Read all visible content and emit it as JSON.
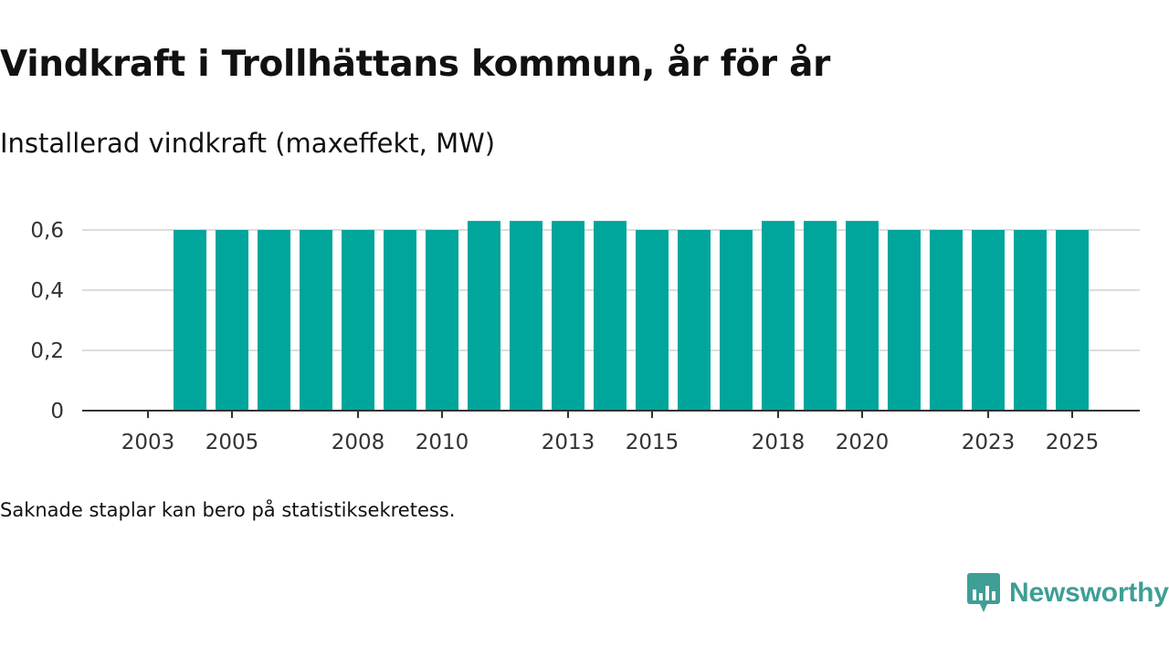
{
  "title": "Vindkraft i Trollhättans kommun, år för år",
  "subtitle": "Installerad vindkraft (maxeffekt, MW)",
  "footnote": "Saknade staplar kan bero på statistiksekretess.",
  "brand": {
    "name": "Newsworthy",
    "color": "#3f9e95",
    "icon": "newsworthy-logo-icon"
  },
  "colors": {
    "bar": "#00a59b",
    "grid": "#dddddd",
    "axis": "#333333",
    "tick_text": "#333333"
  },
  "chart_data": {
    "type": "bar",
    "title": "Vindkraft i Trollhättans kommun, år för år",
    "ylabel": "Installerad vindkraft (maxeffekt, MW)",
    "xlabel": "",
    "categories": [
      2003,
      2004,
      2005,
      2006,
      2007,
      2008,
      2009,
      2010,
      2011,
      2012,
      2013,
      2014,
      2015,
      2016,
      2017,
      2018,
      2019,
      2020,
      2021,
      2022,
      2023,
      2024,
      2025
    ],
    "values": [
      null,
      0.6,
      0.6,
      0.6,
      0.6,
      0.6,
      0.6,
      0.6,
      0.63,
      0.63,
      0.63,
      0.63,
      0.6,
      0.6,
      0.6,
      0.63,
      0.63,
      0.63,
      0.6,
      0.6,
      0.6,
      0.6,
      0.6
    ],
    "x_tick_labels": [
      "2003",
      "2005",
      "2008",
      "2010",
      "2013",
      "2015",
      "2018",
      "2020",
      "2023",
      "2025"
    ],
    "y_ticks": [
      0,
      0.2,
      0.4,
      0.6
    ],
    "y_tick_labels": [
      "0",
      "0,2",
      "0,4",
      "0,6"
    ],
    "ylim": [
      0,
      0.6
    ],
    "grid": true,
    "legend": "none"
  }
}
